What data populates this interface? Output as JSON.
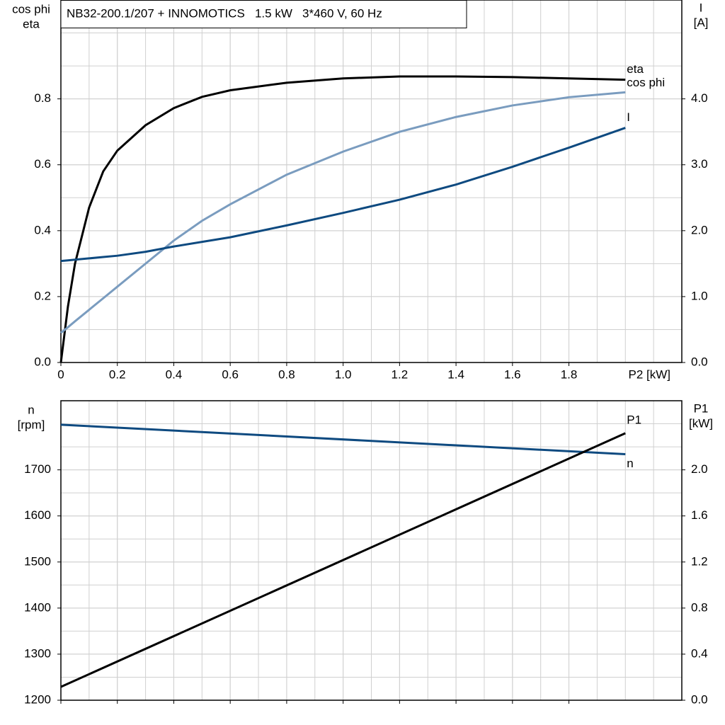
{
  "chart_data": [
    {
      "type": "line",
      "title": "NB32-200.1/207 + INNOMOTICS   1.5 kW   3*460 V, 60 Hz",
      "x_label": "P2 [kW]",
      "y_label": [
        "cos phi",
        "eta"
      ],
      "y2_label": [
        "I",
        "[A]"
      ],
      "x": [
        0,
        0.025,
        0.05,
        0.1,
        0.15,
        0.2,
        0.3,
        0.4,
        0.5,
        0.6,
        0.8,
        1.0,
        1.2,
        1.4,
        1.6,
        1.8,
        2.0
      ],
      "xlim": [
        0,
        2.2
      ],
      "xticks": [
        0,
        0.2,
        0.4,
        0.6,
        0.8,
        {
          "value": 1.0,
          "label": "1.0"
        },
        1.2,
        1.4,
        1.6,
        1.8
      ],
      "ylim": [
        0,
        1.1
      ],
      "yticks": [
        {
          "value": 0,
          "label": "0.0"
        },
        0.2,
        0.4,
        0.6,
        0.8
      ],
      "y2lim": [
        0,
        5.5
      ],
      "y2ticks": [
        {
          "value": 0,
          "label": "0.0"
        },
        {
          "value": 1,
          "label": "1.0"
        },
        {
          "value": 2,
          "label": "2.0"
        },
        {
          "value": 3,
          "label": "3.0"
        },
        {
          "value": 4,
          "label": "4.0"
        }
      ],
      "grid": true,
      "series": [
        {
          "name": "eta",
          "color": "#000000",
          "values": [
            0,
            0.17,
            0.3,
            0.47,
            0.58,
            0.643,
            0.72,
            0.772,
            0.806,
            0.826,
            0.849,
            0.862,
            0.868,
            0.868,
            0.866,
            0.862,
            0.858
          ]
        },
        {
          "name": "cos phi",
          "color": "#7a9cbf",
          "values": [
            0.09,
            0.107,
            0.125,
            0.16,
            0.195,
            0.23,
            0.3,
            0.37,
            0.43,
            0.48,
            0.57,
            0.64,
            0.7,
            0.745,
            0.78,
            0.805,
            0.82
          ]
        },
        {
          "name": "I",
          "color": "#0e4a80",
          "axis": "y2",
          "values": [
            1.54,
            1.55,
            1.56,
            1.58,
            1.6,
            1.62,
            1.68,
            1.76,
            1.83,
            1.9,
            2.08,
            2.27,
            2.47,
            2.7,
            2.97,
            3.26,
            3.56
          ]
        }
      ]
    },
    {
      "type": "line",
      "y_label": [
        "n",
        "[rpm]"
      ],
      "y2_label": [
        "P1",
        "[kW]"
      ],
      "show_xtick_labels": false,
      "x": [
        0,
        2.0
      ],
      "xlim": [
        0,
        2.2
      ],
      "xticks": [
        0,
        0.2,
        0.4,
        0.6,
        0.8,
        1.0,
        1.2,
        1.4,
        1.6,
        1.8
      ],
      "ylim": [
        1200,
        1850
      ],
      "yticks": [
        1200,
        1300,
        1400,
        1500,
        1600,
        1700
      ],
      "y2lim": [
        0,
        2.6
      ],
      "y2ticks": [
        {
          "value": 0,
          "label": "0.0"
        },
        0.4,
        0.8,
        1.2,
        1.6,
        {
          "value": 2,
          "label": "2.0"
        }
      ],
      "grid": true,
      "series": [
        {
          "name": "n",
          "color": "#0e4a80",
          "values": [
            1798,
            1734
          ]
        },
        {
          "name": "P1",
          "color": "#000000",
          "axis": "y2",
          "values": [
            0.116,
            2.318
          ]
        }
      ]
    }
  ]
}
